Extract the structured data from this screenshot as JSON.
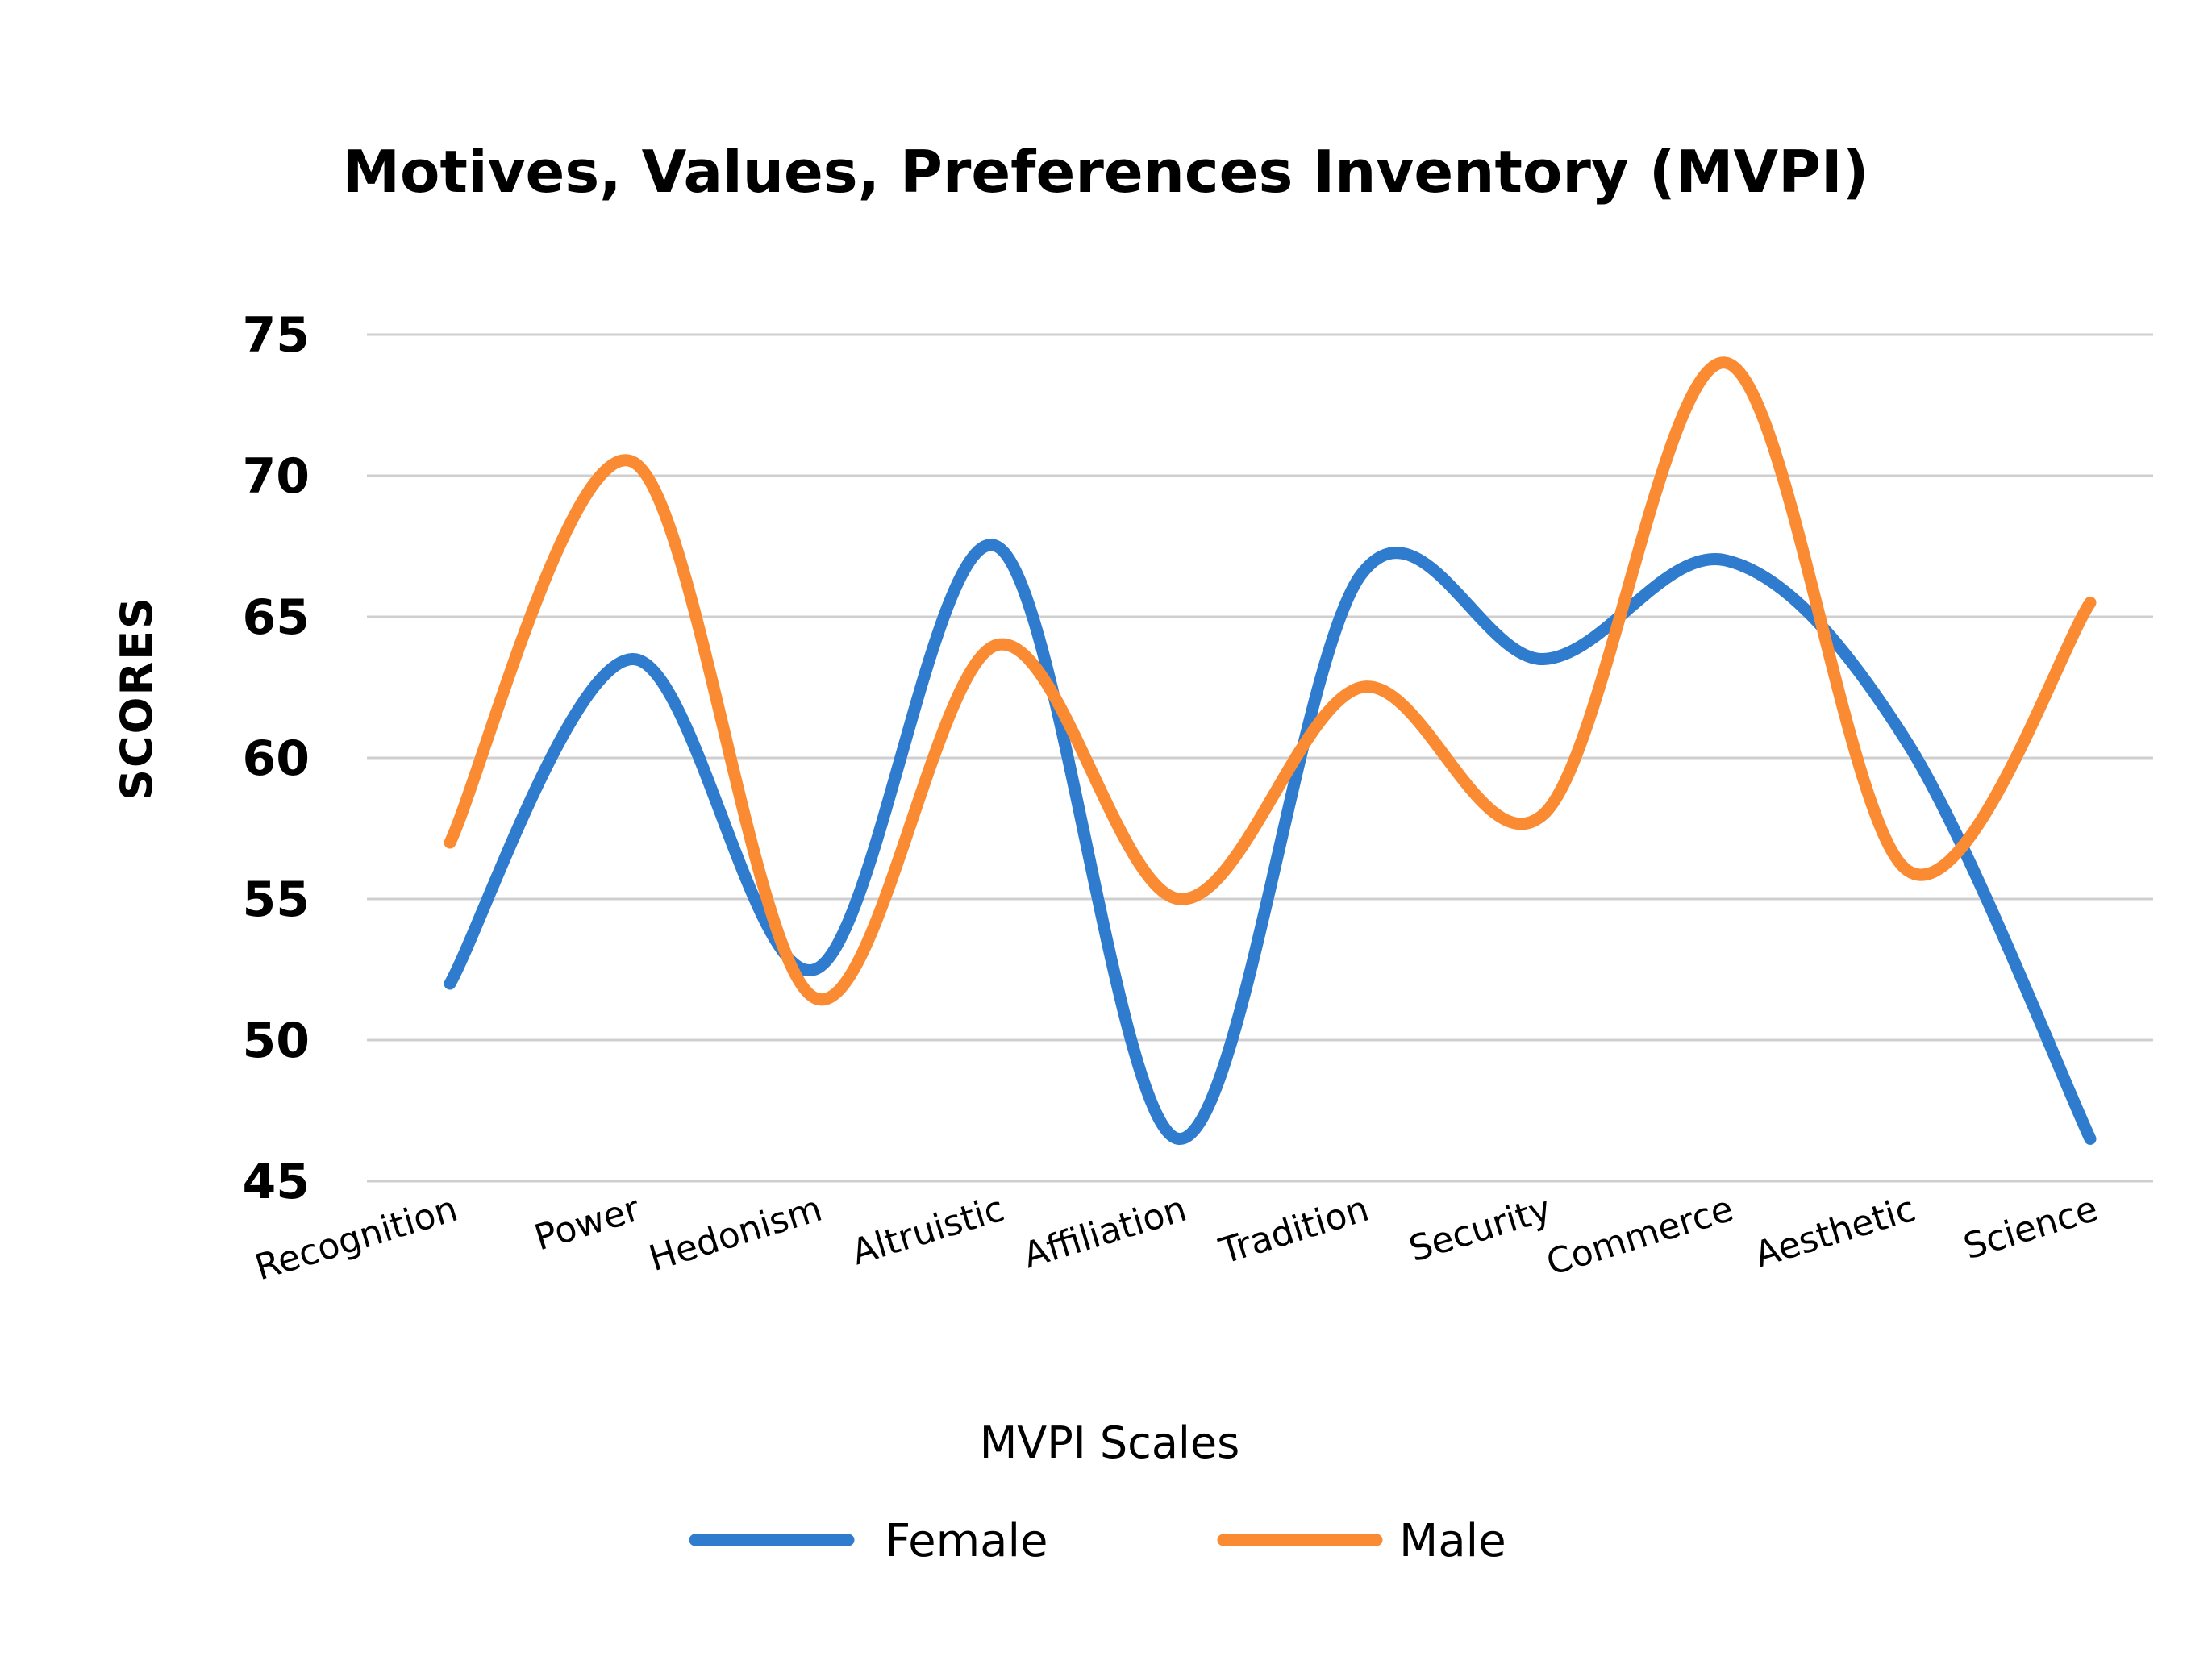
{
  "chart_data": {
    "type": "line",
    "title": "Motives, Values, Preferences Inventory (MVPI)",
    "xlabel": "MVPI Scales",
    "ylabel": "SCORES",
    "categories": [
      "Recognition",
      "Power",
      "Hedonism",
      "Altruistic",
      "Affiliation",
      "Tradition",
      "Security",
      "Commerce",
      "Aesthetic",
      "Science"
    ],
    "ylim": [
      45,
      75
    ],
    "yticks": [
      45,
      50,
      55,
      60,
      65,
      70,
      75
    ],
    "ytick_labels": [
      "45",
      "50",
      "55",
      "60",
      "65",
      "70",
      "75"
    ],
    "grid": true,
    "smooth": true,
    "legend_position": "bottom",
    "series": [
      {
        "name": "Female",
        "color": "#2f7bce",
        "values": [
          52,
          63.5,
          52.5,
          67.5,
          46.5,
          66.5,
          63.5,
          67,
          60.5,
          46.5
        ]
      },
      {
        "name": "Male",
        "color": "#fb8b33",
        "values": [
          57,
          70.5,
          51.5,
          64,
          55,
          62.5,
          58,
          74,
          56,
          65.5
        ]
      }
    ]
  }
}
